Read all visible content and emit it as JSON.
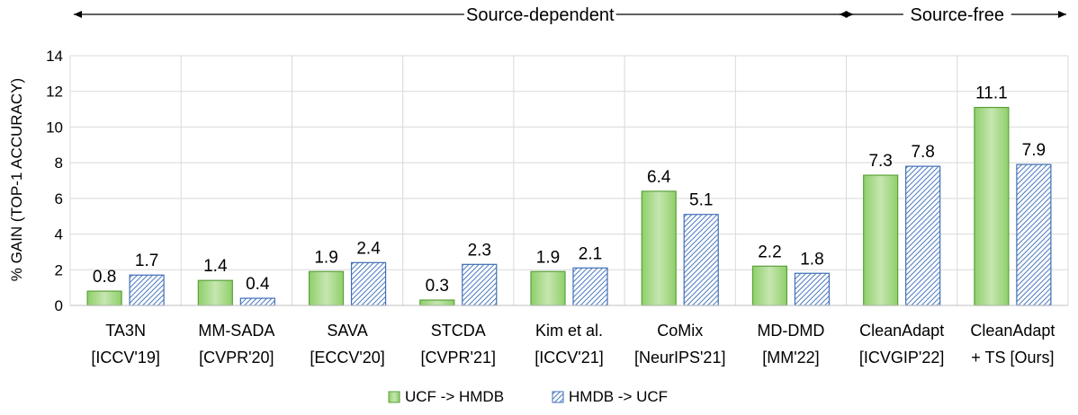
{
  "chart_data": {
    "type": "bar",
    "title": "",
    "xlabel": "",
    "ylabel": "% GAIN (TOP-1 ACCURACY)",
    "ylim": [
      0,
      14
    ],
    "yticks": [
      0,
      2,
      4,
      6,
      8,
      10,
      12,
      14
    ],
    "grid": true,
    "legend_position": "bottom",
    "categories": [
      [
        "TA3N",
        "[ICCV'19]"
      ],
      [
        "MM-SADA",
        "[CVPR'20]"
      ],
      [
        "SAVA",
        "[ECCV'20]"
      ],
      [
        "STCDA",
        "[CVPR'21]"
      ],
      [
        "Kim et al.",
        "[ICCV'21]"
      ],
      [
        "CoMix",
        "[NeurIPS'21]"
      ],
      [
        "MD-DMD",
        "[MM'22]"
      ],
      [
        "CleanAdapt",
        "[ICVGIP'22]"
      ],
      [
        "CleanAdapt",
        "+ TS [Ours]"
      ]
    ],
    "series": [
      {
        "name": "UCF -> HMDB",
        "values": [
          0.8,
          1.4,
          1.9,
          0.3,
          1.9,
          6.4,
          2.2,
          7.3,
          11.1
        ],
        "labels": [
          "0.8",
          "1.4",
          "1.9",
          "0.3",
          "1.9",
          "6.4",
          "2.2",
          "7.3",
          "11.1"
        ],
        "color": "#7dbf5a",
        "pattern": "gradient"
      },
      {
        "name": "HMDB -> UCF",
        "values": [
          1.7,
          0.4,
          2.4,
          2.3,
          2.1,
          5.1,
          1.8,
          7.8,
          7.9
        ],
        "labels": [
          "1.7",
          "0.4",
          "2.4",
          "2.3",
          "2.1",
          "5.1",
          "1.8",
          "7.8",
          "7.9"
        ],
        "color": "#3f6fb5",
        "pattern": "hatch"
      }
    ],
    "annotations": [
      {
        "text": "Source-dependent",
        "from_category": 0,
        "to_category": 6
      },
      {
        "text": "Source-free",
        "from_category": 7,
        "to_category": 8
      }
    ]
  }
}
